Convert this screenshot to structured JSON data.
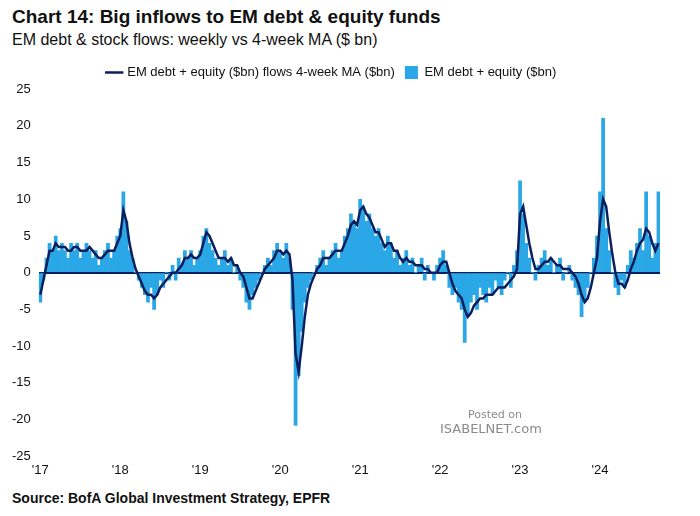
{
  "chart_data": {
    "type": "bar",
    "title": "Chart 14: Big inflows to EM debt & equity funds",
    "subtitle": "EM debt & stock flows: weekly vs 4-week MA ($ bn)",
    "source": "Source: BofA Global Investment Strategy, EPFR",
    "annotations": [
      "Posted on",
      "ISABELNET.com"
    ],
    "categories": [
      "'17",
      null,
      null,
      null,
      null,
      null,
      null,
      null,
      null,
      null,
      null,
      null,
      null,
      null,
      null,
      null,
      null,
      null,
      null,
      null,
      null,
      null,
      null,
      null,
      null,
      null,
      "'18",
      null,
      null,
      null,
      null,
      null,
      null,
      null,
      null,
      null,
      null,
      null,
      null,
      null,
      null,
      null,
      null,
      null,
      null,
      null,
      null,
      null,
      null,
      null,
      null,
      null,
      "'19",
      null,
      null,
      null,
      null,
      null,
      null,
      null,
      null,
      null,
      null,
      null,
      null,
      null,
      null,
      null,
      null,
      null,
      null,
      null,
      null,
      null,
      null,
      null,
      null,
      null,
      "'20",
      null,
      null,
      null,
      null,
      null,
      null,
      null,
      null,
      null,
      null,
      null,
      null,
      null,
      null,
      null,
      null,
      null,
      null,
      null,
      null,
      null,
      null,
      null,
      null,
      null,
      "'21",
      null,
      null,
      null,
      null,
      null,
      null,
      null,
      null,
      null,
      null,
      null,
      null,
      null,
      null,
      null,
      null,
      null,
      null,
      null,
      null,
      null,
      null,
      null,
      null,
      null,
      "'22",
      null,
      null,
      null,
      null,
      null,
      null,
      null,
      null,
      null,
      null,
      null,
      null,
      null,
      null,
      null,
      null,
      null,
      null,
      null,
      null,
      null,
      null,
      null,
      null,
      null,
      "'23",
      null,
      null,
      null,
      null,
      null,
      null,
      null,
      null,
      null,
      null,
      null,
      null,
      null,
      null,
      null,
      null,
      null,
      null,
      null,
      null,
      null,
      null,
      null,
      null,
      null,
      "'24",
      null,
      null,
      null,
      null,
      null,
      null,
      null,
      null,
      null,
      null,
      null,
      null,
      null,
      null,
      null,
      null,
      null,
      null,
      null
    ],
    "series": [
      {
        "name": "EM debt + equity ($bn)",
        "type": "bar",
        "color": "#2aa7e6",
        "values": [
          -4,
          -1,
          2,
          4,
          3,
          5,
          3,
          4,
          3,
          2,
          4,
          3,
          4,
          2,
          3,
          4,
          3,
          2,
          3,
          1,
          2,
          3,
          4,
          2,
          3,
          5,
          6,
          11,
          7,
          3,
          2,
          0,
          -1,
          -2,
          -3,
          -4,
          -2,
          -5,
          -3,
          -1,
          -2,
          0,
          -1,
          1,
          -1,
          2,
          1,
          3,
          2,
          3,
          1,
          2,
          3,
          5,
          6,
          4,
          3,
          2,
          1,
          2,
          3,
          1,
          2,
          0,
          1,
          -1,
          -2,
          -4,
          -5,
          -3,
          -2,
          -1,
          0,
          1,
          2,
          1,
          3,
          4,
          3,
          2,
          4,
          2,
          -5,
          -20.8,
          -14,
          -8,
          -4,
          -2,
          -1,
          0,
          1,
          2,
          3,
          1,
          2,
          3,
          4,
          2,
          3,
          5,
          6,
          8,
          7,
          6,
          10,
          9,
          7,
          8,
          6,
          5,
          6,
          4,
          3,
          5,
          4,
          2,
          3,
          1,
          2,
          3,
          1,
          2,
          0,
          1,
          2,
          -1,
          1,
          0,
          -1,
          1,
          2,
          3,
          1,
          -2,
          -3,
          -2,
          -4,
          -5,
          -9.5,
          -6,
          -4,
          -3,
          -5,
          -2,
          -3,
          -4,
          -2,
          -3,
          -1,
          -2,
          -3,
          -1,
          0,
          -2,
          1,
          3,
          12.5,
          8,
          4,
          2,
          0,
          -1,
          1,
          2,
          3,
          1,
          2,
          0,
          1,
          2,
          -1,
          0,
          1,
          -1,
          -2,
          -3,
          -6,
          -4,
          -2,
          0,
          2,
          5,
          11,
          21,
          6,
          3,
          0,
          -2,
          -3,
          -1,
          -2,
          1,
          3,
          2,
          4,
          6,
          3,
          11,
          5,
          2,
          4,
          11
        ]
      },
      {
        "name": "EM debt + equity ($bn) flows 4-week MA ($bn)",
        "type": "line",
        "color": "#0b1f5e",
        "values": [
          -3,
          -1,
          1,
          3,
          3,
          4,
          3.5,
          3.5,
          3.5,
          3,
          3,
          3.5,
          3.5,
          3,
          3,
          3,
          3.5,
          3,
          2.5,
          2,
          2,
          2.5,
          3,
          3,
          3,
          4,
          5,
          8.5,
          7,
          4,
          2,
          0.5,
          -0.5,
          -1.5,
          -2.5,
          -3,
          -3,
          -3.5,
          -3,
          -2,
          -1.5,
          -1,
          -0.5,
          0,
          0,
          0.5,
          1,
          2,
          2,
          2.5,
          2,
          2,
          2.5,
          4,
          5.5,
          5,
          4,
          3,
          2,
          2,
          2,
          1.5,
          2,
          1,
          1,
          0,
          -0.5,
          -2,
          -3.5,
          -3.5,
          -2.5,
          -1.5,
          -0.5,
          0.5,
          1,
          1.5,
          2,
          3,
          3,
          2.5,
          3,
          2.5,
          -1,
          -11,
          -13.5,
          -10,
          -6,
          -3,
          -1.5,
          -0.5,
          0.5,
          1,
          2,
          2,
          2,
          2.5,
          3,
          3,
          3,
          4,
          5,
          6.5,
          7,
          6.5,
          8.5,
          9,
          8,
          7.5,
          6.5,
          5.5,
          5.5,
          4.5,
          3.5,
          4,
          4,
          3,
          3,
          2,
          1.5,
          2,
          1.5,
          1.5,
          1,
          1,
          1,
          0.5,
          0.5,
          0,
          0,
          0,
          1,
          1.5,
          1.5,
          0,
          -1.5,
          -2.5,
          -3,
          -3.5,
          -5,
          -6,
          -5.5,
          -4.5,
          -4,
          -3.5,
          -3.5,
          -3,
          -3,
          -3,
          -2.5,
          -2,
          -2,
          -2,
          -1.5,
          -1,
          -0.5,
          0.5,
          8,
          9,
          6.5,
          4,
          2,
          0.5,
          0.5,
          1,
          1.5,
          1.5,
          2,
          1.5,
          1,
          1,
          0.5,
          0.5,
          0.5,
          0,
          -0.5,
          -1.5,
          -3,
          -4,
          -3.5,
          -2,
          0,
          2,
          7,
          10,
          9,
          5.5,
          2.5,
          0,
          -1.5,
          -1.5,
          -2,
          -1,
          0.5,
          1.5,
          3,
          4,
          4.5,
          6,
          5.5,
          4,
          3,
          4
        ]
      }
    ],
    "ylim": [
      -25,
      25
    ],
    "yticks": [
      -25,
      -20,
      -15,
      -10,
      -5,
      0,
      5,
      10,
      15,
      20,
      25
    ],
    "grid": false,
    "legend": "top"
  }
}
